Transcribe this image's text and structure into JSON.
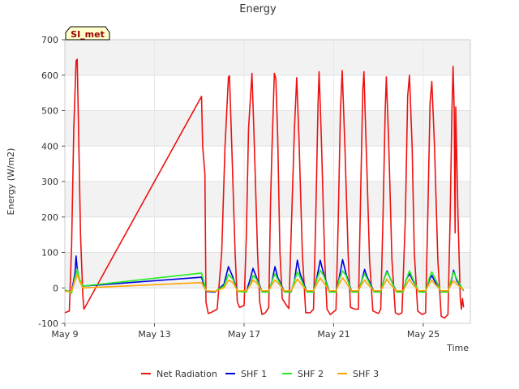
{
  "chart_data": {
    "type": "line",
    "title": "Energy",
    "xlabel": "Time",
    "ylabel": "Energy (W/m2)",
    "badge": "SI_met",
    "xlim_days": [
      9.0,
      27.1
    ],
    "ylim": [
      -100,
      700
    ],
    "x_ticks": [
      {
        "day": 9,
        "label": "May 9"
      },
      {
        "day": 13,
        "label": "May 13"
      },
      {
        "day": 17,
        "label": "May 17"
      },
      {
        "day": 21,
        "label": "May 21"
      },
      {
        "day": 25,
        "label": "May 25"
      }
    ],
    "y_ticks": [
      -100,
      0,
      100,
      200,
      300,
      400,
      500,
      600,
      700
    ],
    "legend_position": "bottom",
    "series": [
      {
        "name": "Net Radiation",
        "color": "#ee1111",
        "points": [
          [
            9.0,
            -70
          ],
          [
            9.2,
            -65
          ],
          [
            9.3,
            120
          ],
          [
            9.4,
            450
          ],
          [
            9.5,
            640
          ],
          [
            9.55,
            645
          ],
          [
            9.62,
            420
          ],
          [
            9.7,
            150
          ],
          [
            9.8,
            -20
          ],
          [
            9.85,
            -60
          ],
          [
            15.1,
            540
          ],
          [
            15.15,
            400
          ],
          [
            15.25,
            320
          ],
          [
            15.3,
            -40
          ],
          [
            15.4,
            -72
          ],
          [
            15.5,
            -70
          ],
          [
            15.8,
            -60
          ],
          [
            16.0,
            100
          ],
          [
            16.15,
            400
          ],
          [
            16.3,
            595
          ],
          [
            16.35,
            598
          ],
          [
            16.45,
            400
          ],
          [
            16.6,
            100
          ],
          [
            16.7,
            -40
          ],
          [
            16.8,
            -55
          ],
          [
            17.0,
            -50
          ],
          [
            17.1,
            150
          ],
          [
            17.2,
            450
          ],
          [
            17.35,
            605
          ],
          [
            17.45,
            420
          ],
          [
            17.6,
            100
          ],
          [
            17.7,
            -40
          ],
          [
            17.8,
            -75
          ],
          [
            17.95,
            -70
          ],
          [
            18.1,
            -55
          ],
          [
            18.18,
            240
          ],
          [
            18.25,
            400
          ],
          [
            18.35,
            605
          ],
          [
            18.42,
            590
          ],
          [
            18.5,
            430
          ],
          [
            18.6,
            100
          ],
          [
            18.7,
            -30
          ],
          [
            18.8,
            -40
          ],
          [
            18.9,
            -50
          ],
          [
            19.0,
            -58
          ],
          [
            19.1,
            150
          ],
          [
            19.25,
            450
          ],
          [
            19.35,
            593
          ],
          [
            19.45,
            420
          ],
          [
            19.6,
            100
          ],
          [
            19.75,
            -70
          ],
          [
            19.95,
            -70
          ],
          [
            20.1,
            -60
          ],
          [
            20.2,
            200
          ],
          [
            20.3,
            520
          ],
          [
            20.35,
            610
          ],
          [
            20.45,
            420
          ],
          [
            20.6,
            80
          ],
          [
            20.7,
            -60
          ],
          [
            20.85,
            -75
          ],
          [
            21.1,
            -62
          ],
          [
            21.2,
            180
          ],
          [
            21.3,
            500
          ],
          [
            21.38,
            613
          ],
          [
            21.5,
            400
          ],
          [
            21.65,
            90
          ],
          [
            21.75,
            -55
          ],
          [
            21.95,
            -60
          ],
          [
            22.1,
            -60
          ],
          [
            22.2,
            250
          ],
          [
            22.3,
            560
          ],
          [
            22.35,
            610
          ],
          [
            22.4,
            500
          ],
          [
            22.5,
            300
          ],
          [
            22.6,
            80
          ],
          [
            22.75,
            -65
          ],
          [
            23.0,
            -72
          ],
          [
            23.1,
            -60
          ],
          [
            23.2,
            200
          ],
          [
            23.3,
            500
          ],
          [
            23.35,
            595
          ],
          [
            23.45,
            420
          ],
          [
            23.6,
            80
          ],
          [
            23.75,
            -70
          ],
          [
            23.9,
            -75
          ],
          [
            24.05,
            -70
          ],
          [
            24.2,
            200
          ],
          [
            24.3,
            540
          ],
          [
            24.38,
            600
          ],
          [
            24.5,
            400
          ],
          [
            24.6,
            100
          ],
          [
            24.75,
            -65
          ],
          [
            24.95,
            -75
          ],
          [
            25.1,
            -70
          ],
          [
            25.2,
            200
          ],
          [
            25.3,
            520
          ],
          [
            25.38,
            582
          ],
          [
            25.5,
            400
          ],
          [
            25.65,
            80
          ],
          [
            25.8,
            -80
          ],
          [
            25.95,
            -85
          ],
          [
            26.1,
            -75
          ],
          [
            26.2,
            200
          ],
          [
            26.28,
            500
          ],
          [
            26.33,
            625
          ],
          [
            26.38,
            500
          ],
          [
            26.42,
            155
          ],
          [
            26.45,
            510
          ],
          [
            26.55,
            200
          ],
          [
            26.65,
            -30
          ],
          [
            26.7,
            -60
          ],
          [
            26.75,
            -30
          ],
          [
            26.8,
            -55
          ]
        ]
      },
      {
        "name": "SHF 1",
        "color": "#0000dd",
        "points": [
          [
            9.0,
            -8
          ],
          [
            9.3,
            -10
          ],
          [
            9.45,
            40
          ],
          [
            9.5,
            90
          ],
          [
            9.55,
            55
          ],
          [
            9.65,
            20
          ],
          [
            9.8,
            5
          ],
          [
            15.1,
            30
          ],
          [
            15.3,
            -10
          ],
          [
            15.7,
            -12
          ],
          [
            16.1,
            10
          ],
          [
            16.3,
            60
          ],
          [
            16.5,
            30
          ],
          [
            16.7,
            -8
          ],
          [
            17.1,
            -10
          ],
          [
            17.25,
            20
          ],
          [
            17.4,
            55
          ],
          [
            17.55,
            30
          ],
          [
            17.8,
            -10
          ],
          [
            18.1,
            -10
          ],
          [
            18.25,
            20
          ],
          [
            18.38,
            60
          ],
          [
            18.5,
            30
          ],
          [
            18.8,
            -10
          ],
          [
            19.1,
            -12
          ],
          [
            19.25,
            20
          ],
          [
            19.38,
            78
          ],
          [
            19.5,
            40
          ],
          [
            19.8,
            -10
          ],
          [
            20.1,
            -12
          ],
          [
            20.25,
            30
          ],
          [
            20.4,
            78
          ],
          [
            20.55,
            40
          ],
          [
            20.8,
            -10
          ],
          [
            21.1,
            -10
          ],
          [
            21.25,
            30
          ],
          [
            21.4,
            80
          ],
          [
            21.55,
            40
          ],
          [
            21.8,
            -10
          ],
          [
            22.1,
            -10
          ],
          [
            22.25,
            20
          ],
          [
            22.38,
            52
          ],
          [
            22.5,
            30
          ],
          [
            22.8,
            -10
          ],
          [
            23.1,
            -12
          ],
          [
            23.25,
            25
          ],
          [
            23.38,
            48
          ],
          [
            23.5,
            30
          ],
          [
            23.8,
            -10
          ],
          [
            24.1,
            -10
          ],
          [
            24.25,
            25
          ],
          [
            24.38,
            40
          ],
          [
            24.5,
            25
          ],
          [
            24.8,
            -10
          ],
          [
            25.1,
            -10
          ],
          [
            25.25,
            20
          ],
          [
            25.38,
            35
          ],
          [
            25.5,
            20
          ],
          [
            25.8,
            -12
          ],
          [
            26.1,
            -10
          ],
          [
            26.25,
            20
          ],
          [
            26.35,
            50
          ],
          [
            26.5,
            20
          ],
          [
            26.8,
            -8
          ]
        ]
      },
      {
        "name": "SHF 2",
        "color": "#22ee22",
        "points": [
          [
            9.0,
            -5
          ],
          [
            9.3,
            -15
          ],
          [
            9.45,
            30
          ],
          [
            9.55,
            52
          ],
          [
            9.65,
            25
          ],
          [
            9.8,
            5
          ],
          [
            15.1,
            42
          ],
          [
            15.3,
            -8
          ],
          [
            15.7,
            -10
          ],
          [
            16.1,
            5
          ],
          [
            16.3,
            38
          ],
          [
            16.5,
            25
          ],
          [
            16.7,
            -10
          ],
          [
            17.1,
            -12
          ],
          [
            17.3,
            15
          ],
          [
            17.4,
            35
          ],
          [
            17.55,
            25
          ],
          [
            17.8,
            -12
          ],
          [
            18.1,
            -12
          ],
          [
            18.25,
            20
          ],
          [
            18.38,
            40
          ],
          [
            18.5,
            25
          ],
          [
            18.8,
            -12
          ],
          [
            19.1,
            -12
          ],
          [
            19.25,
            20
          ],
          [
            19.38,
            45
          ],
          [
            19.5,
            30
          ],
          [
            19.8,
            -12
          ],
          [
            20.1,
            -12
          ],
          [
            20.25,
            25
          ],
          [
            20.4,
            50
          ],
          [
            20.55,
            35
          ],
          [
            20.8,
            -12
          ],
          [
            21.1,
            -12
          ],
          [
            21.25,
            25
          ],
          [
            21.4,
            48
          ],
          [
            21.55,
            35
          ],
          [
            21.8,
            -12
          ],
          [
            22.1,
            -12
          ],
          [
            22.25,
            20
          ],
          [
            22.38,
            40
          ],
          [
            22.5,
            25
          ],
          [
            22.8,
            -12
          ],
          [
            23.1,
            -12
          ],
          [
            23.25,
            25
          ],
          [
            23.38,
            45
          ],
          [
            23.5,
            30
          ],
          [
            23.8,
            -12
          ],
          [
            24.1,
            -12
          ],
          [
            24.25,
            25
          ],
          [
            24.38,
            48
          ],
          [
            24.5,
            30
          ],
          [
            24.8,
            -12
          ],
          [
            25.1,
            -12
          ],
          [
            25.25,
            25
          ],
          [
            25.38,
            45
          ],
          [
            25.5,
            30
          ],
          [
            25.8,
            -12
          ],
          [
            26.1,
            -12
          ],
          [
            26.25,
            25
          ],
          [
            26.35,
            45
          ],
          [
            26.5,
            25
          ],
          [
            26.8,
            -8
          ]
        ]
      },
      {
        "name": "SHF 3",
        "color": "#ffa500",
        "points": [
          [
            9.0,
            -10
          ],
          [
            9.3,
            -10
          ],
          [
            9.45,
            20
          ],
          [
            9.55,
            38
          ],
          [
            9.65,
            20
          ],
          [
            9.8,
            0
          ],
          [
            15.1,
            15
          ],
          [
            15.3,
            -8
          ],
          [
            15.7,
            -10
          ],
          [
            16.1,
            0
          ],
          [
            16.3,
            22
          ],
          [
            16.5,
            15
          ],
          [
            16.7,
            -8
          ],
          [
            17.1,
            -8
          ],
          [
            17.3,
            10
          ],
          [
            17.4,
            22
          ],
          [
            17.55,
            15
          ],
          [
            17.8,
            -8
          ],
          [
            18.1,
            -8
          ],
          [
            18.25,
            10
          ],
          [
            18.38,
            22
          ],
          [
            18.5,
            15
          ],
          [
            18.8,
            -8
          ],
          [
            19.1,
            -8
          ],
          [
            19.25,
            10
          ],
          [
            19.38,
            25
          ],
          [
            19.5,
            15
          ],
          [
            19.8,
            -8
          ],
          [
            20.1,
            -8
          ],
          [
            20.25,
            12
          ],
          [
            20.4,
            28
          ],
          [
            20.55,
            15
          ],
          [
            20.8,
            -8
          ],
          [
            21.1,
            -8
          ],
          [
            21.25,
            12
          ],
          [
            21.4,
            28
          ],
          [
            21.55,
            15
          ],
          [
            21.8,
            -8
          ],
          [
            22.1,
            -8
          ],
          [
            22.25,
            10
          ],
          [
            22.38,
            22
          ],
          [
            22.5,
            12
          ],
          [
            22.8,
            -8
          ],
          [
            23.1,
            -8
          ],
          [
            23.25,
            10
          ],
          [
            23.38,
            25
          ],
          [
            23.5,
            12
          ],
          [
            23.8,
            -8
          ],
          [
            24.1,
            -8
          ],
          [
            24.25,
            10
          ],
          [
            24.38,
            25
          ],
          [
            24.5,
            12
          ],
          [
            24.8,
            -8
          ],
          [
            25.1,
            -8
          ],
          [
            25.25,
            10
          ],
          [
            25.38,
            22
          ],
          [
            25.5,
            12
          ],
          [
            25.8,
            -8
          ],
          [
            26.1,
            -8
          ],
          [
            26.25,
            10
          ],
          [
            26.35,
            20
          ],
          [
            26.5,
            10
          ],
          [
            26.8,
            -5
          ]
        ]
      }
    ]
  }
}
